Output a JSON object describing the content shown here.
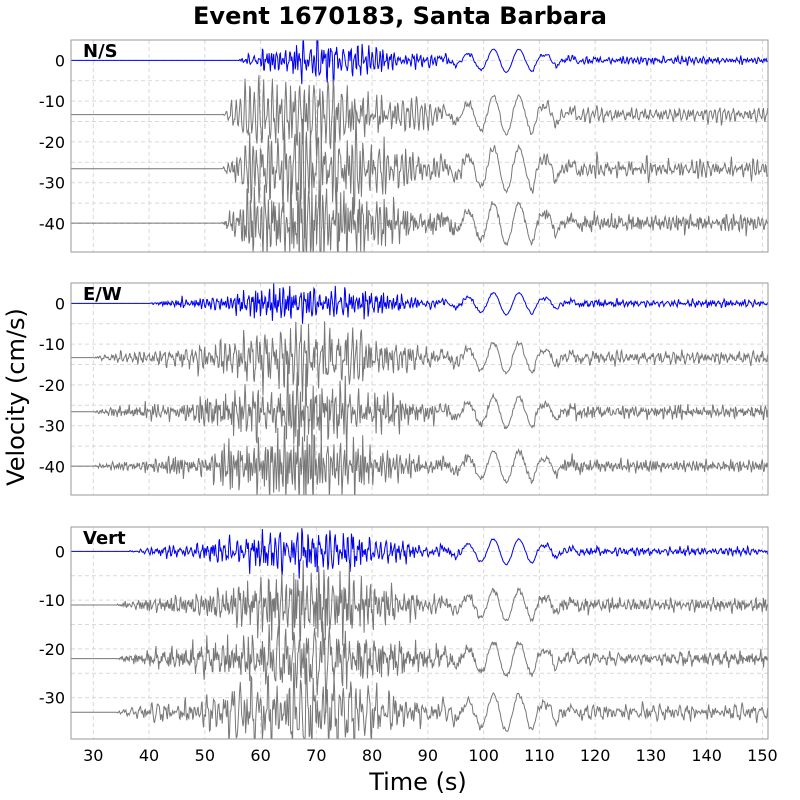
{
  "chart_data": {
    "type": "line",
    "title": "Event 1670183, Santa Barbara",
    "xlabel": "Time (s)",
    "ylabel": "Velocity (cm/s)",
    "xlim": [
      26,
      151
    ],
    "xticks": [
      30,
      40,
      50,
      60,
      70,
      80,
      90,
      100,
      110,
      120,
      130,
      140,
      150
    ],
    "grid": true,
    "colors": {
      "primary": "#0000ee",
      "secondary": "#777777"
    },
    "panels": [
      {
        "label": "N/S",
        "ylim": [
          -47,
          5
        ],
        "yticks": [
          0,
          -10,
          -20,
          -30,
          -40
        ],
        "traces": [
          {
            "offset": 0,
            "color": "primary",
            "onset": 56,
            "amp": 3.6,
            "seed": 11
          },
          {
            "offset": -13.3,
            "color": "secondary",
            "onset": 53,
            "amp": 7.5,
            "seed": 23
          },
          {
            "offset": -26.6,
            "color": "secondary",
            "onset": 53,
            "amp": 8.5,
            "seed": 37
          },
          {
            "offset": -39.9,
            "color": "secondary",
            "onset": 53,
            "amp": 8.0,
            "seed": 41
          }
        ]
      },
      {
        "label": "E/W",
        "ylim": [
          -47,
          5
        ],
        "yticks": [
          0,
          -10,
          -20,
          -30,
          -40
        ],
        "traces": [
          {
            "offset": 0,
            "color": "primary",
            "onset": 40,
            "amp": 3.4,
            "seed": 53
          },
          {
            "offset": -13.3,
            "color": "secondary",
            "onset": 30,
            "amp": 6.0,
            "seed": 67
          },
          {
            "offset": -26.6,
            "color": "secondary",
            "onset": 30,
            "amp": 6.0,
            "seed": 71
          },
          {
            "offset": -39.9,
            "color": "secondary",
            "onset": 30,
            "amp": 6.0,
            "seed": 83
          }
        ]
      },
      {
        "label": "Vert",
        "ylim": [
          -38.5,
          5
        ],
        "yticks": [
          0,
          -10,
          -20,
          -30
        ],
        "traces": [
          {
            "offset": 0,
            "color": "primary",
            "onset": 36,
            "amp": 3.3,
            "seed": 97
          },
          {
            "offset": -11,
            "color": "secondary",
            "onset": 34,
            "amp": 5.0,
            "seed": 101
          },
          {
            "offset": -22,
            "color": "secondary",
            "onset": 34,
            "amp": 5.5,
            "seed": 113
          },
          {
            "offset": -33,
            "color": "secondary",
            "onset": 34,
            "amp": 6.0,
            "seed": 127
          }
        ]
      }
    ]
  }
}
